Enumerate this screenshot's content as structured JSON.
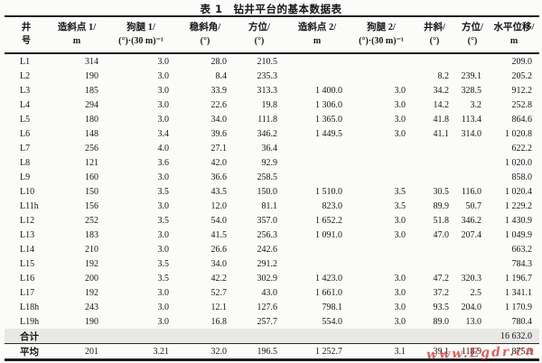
{
  "title": {
    "label": "表 1",
    "text": "钻井平台的基本数据表"
  },
  "watermark": {
    "text": "www.Egdr.cn",
    "color": "#cb4040"
  },
  "table": {
    "columns": [
      {
        "name": "well-no",
        "title": "井",
        "unit": "号"
      },
      {
        "name": "kickoff-point-1",
        "title": "造斜点 1/",
        "unit": "m"
      },
      {
        "name": "dogleg-1",
        "title": "狗腿 1/",
        "unit": "(°)·(30 m)⁻¹"
      },
      {
        "name": "hold-angle",
        "title": "稳斜角/",
        "unit": "(°)"
      },
      {
        "name": "azimuth-1",
        "title": "方位/",
        "unit": "(°)"
      },
      {
        "name": "kickoff-point-2",
        "title": "造斜点 2/",
        "unit": "m"
      },
      {
        "name": "dogleg-2",
        "title": "狗腿 2/",
        "unit": "(°)·(30 m)⁻¹"
      },
      {
        "name": "inclination",
        "title": "井斜/",
        "unit": "(°)"
      },
      {
        "name": "azimuth-2",
        "title": "方位/",
        "unit": "(°)"
      },
      {
        "name": "horizontal-displacement",
        "title": "水平位移/",
        "unit": "m"
      }
    ],
    "rows": [
      {
        "cells": [
          "L1",
          "314",
          "3.0",
          "28.0",
          "210.5",
          "",
          "",
          "",
          "",
          "209.0"
        ]
      },
      {
        "cells": [
          "L2",
          "190",
          "3.0",
          "8.4",
          "235.3",
          "",
          "",
          "8.2",
          "239.1",
          "205.2"
        ]
      },
      {
        "cells": [
          "L3",
          "185",
          "3.0",
          "33.9",
          "313.3",
          "1 400.0",
          "3.0",
          "34.2",
          "328.5",
          "912.2"
        ]
      },
      {
        "cells": [
          "L4",
          "294",
          "3.0",
          "22.6",
          "19.8",
          "1 306.0",
          "3.0",
          "14.2",
          "3.2",
          "252.8"
        ]
      },
      {
        "cells": [
          "L5",
          "180",
          "3.0",
          "34.0",
          "111.8",
          "1 365.0",
          "3.0",
          "41.8",
          "113.4",
          "864.6"
        ]
      },
      {
        "cells": [
          "L6",
          "148",
          "3.4",
          "39.6",
          "346.2",
          "1 449.5",
          "3.0",
          "41.1",
          "314.0",
          "1 020.8"
        ]
      },
      {
        "cells": [
          "L7",
          "256",
          "4.0",
          "27.1",
          "36.4",
          "",
          "",
          "",
          "",
          "622.2"
        ]
      },
      {
        "cells": [
          "L8",
          "121",
          "3.6",
          "42.0",
          "92.9",
          "",
          "",
          "",
          "",
          "1 020.0"
        ]
      },
      {
        "cells": [
          "L9",
          "160",
          "3.0",
          "36.6",
          "258.5",
          "",
          "",
          "",
          "",
          "858.0"
        ]
      },
      {
        "cells": [
          "L10",
          "150",
          "3.5",
          "43.5",
          "150.0",
          "1 510.0",
          "3.5",
          "30.5",
          "116.0",
          "1 020.4"
        ]
      },
      {
        "cells": [
          "L11h",
          "156",
          "3.0",
          "12.0",
          "81.1",
          "823.0",
          "3.5",
          "89.9",
          "50.7",
          "1 229.2"
        ]
      },
      {
        "cells": [
          "L12",
          "252",
          "3.5",
          "54.0",
          "357.0",
          "1 652.2",
          "3.0",
          "51.8",
          "346.2",
          "1 430.9"
        ]
      },
      {
        "cells": [
          "L13",
          "183",
          "3.0",
          "41.5",
          "256.3",
          "1 091.0",
          "3.0",
          "47.0",
          "207.4",
          "1 049.9"
        ]
      },
      {
        "cells": [
          "L14",
          "210",
          "3.0",
          "26.6",
          "242.6",
          "",
          "",
          "",
          "",
          "663.2"
        ]
      },
      {
        "cells": [
          "L15",
          "192",
          "3.5",
          "34.0",
          "291.2",
          "",
          "",
          "",
          "",
          "784.3"
        ]
      },
      {
        "cells": [
          "L16",
          "200",
          "3.5",
          "42.2",
          "302.9",
          "1 423.0",
          "3.0",
          "47.2",
          "320.3",
          "1 196.7"
        ]
      },
      {
        "cells": [
          "L17",
          "192",
          "3.0",
          "52.7",
          "43.0",
          "1 661.0",
          "3.0",
          "37.2",
          "2.5",
          "1 341.1"
        ]
      },
      {
        "cells": [
          "L18h",
          "243",
          "3.0",
          "12.1",
          "127.6",
          "798.1",
          "3.0",
          "93.5",
          "204.0",
          "1 170.9"
        ]
      },
      {
        "cells": [
          "L19h",
          "190",
          "3.0",
          "16.8",
          "257.7",
          "554.0",
          "3.0",
          "89.0",
          "13.0",
          "780.4"
        ]
      },
      {
        "cells": [
          "合计",
          "",
          "",
          "",
          "",
          "",
          "",
          "",
          "",
          "16 632.0"
        ],
        "shaded": true,
        "bold": true
      },
      {
        "cells": [
          "平均",
          "201",
          "3.21",
          "32.0",
          "196.5",
          "1 252.7",
          "3.1",
          "39.1",
          "118.9",
          "875.3"
        ],
        "bold": true,
        "topline": true
      }
    ]
  }
}
